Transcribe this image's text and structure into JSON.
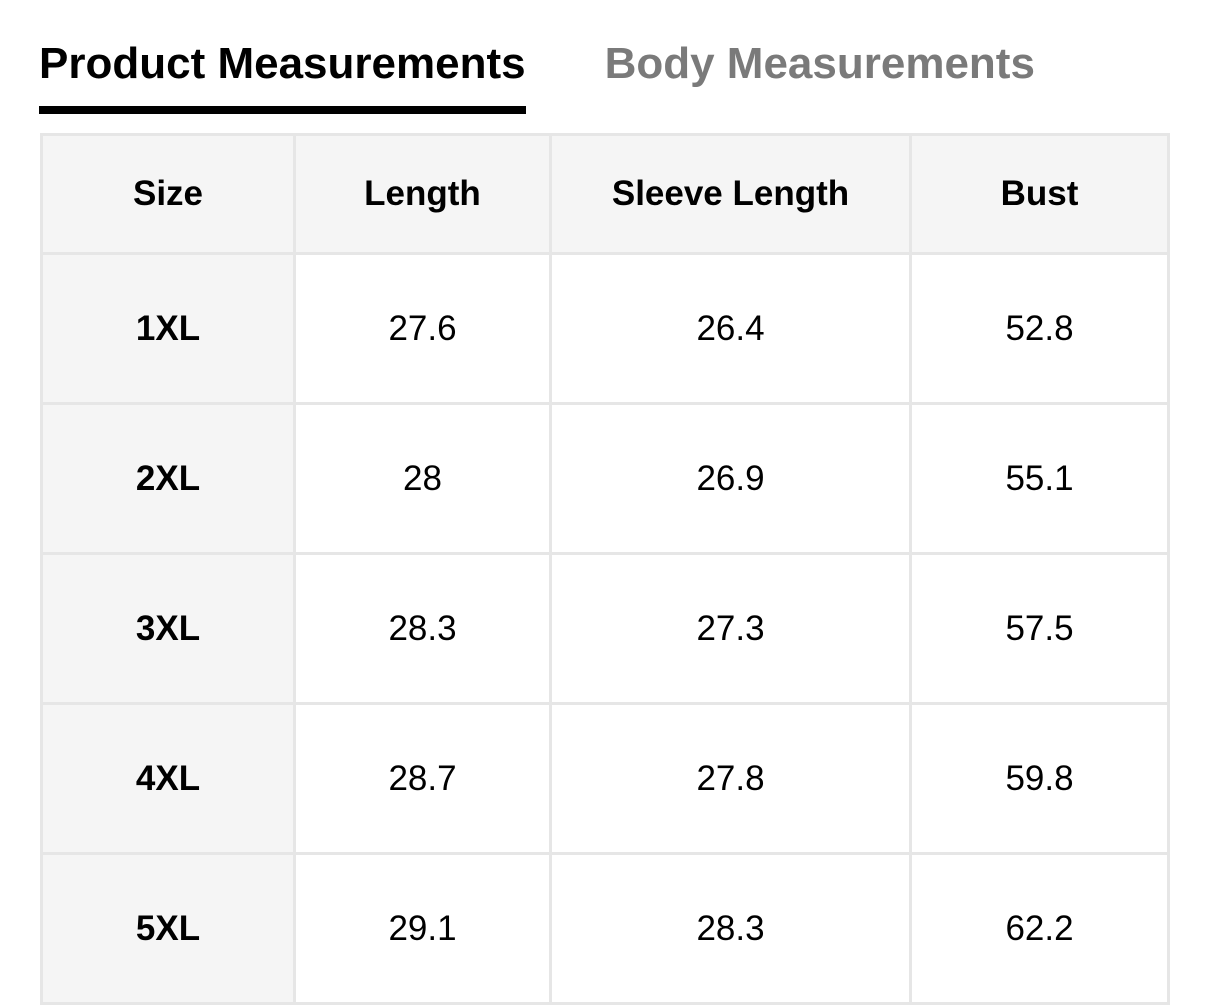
{
  "tabs": [
    {
      "label": "Product Measurements",
      "active": true
    },
    {
      "label": "Body Measurements",
      "active": false
    }
  ],
  "table": {
    "headers": [
      "Size",
      "Length",
      "Sleeve Length",
      "Bust"
    ],
    "rows": [
      [
        "1XL",
        "27.6",
        "26.4",
        "52.8"
      ],
      [
        "2XL",
        "28",
        "26.9",
        "55.1"
      ],
      [
        "3XL",
        "28.3",
        "27.3",
        "57.5"
      ],
      [
        "4XL",
        "28.7",
        "27.8",
        "59.8"
      ],
      [
        "5XL",
        "29.1",
        "28.3",
        "62.2"
      ]
    ]
  },
  "colors": {
    "header_bg": "#f5f5f5",
    "border": "#e6e6e6",
    "inactive_tab": "#7a7a7a"
  }
}
